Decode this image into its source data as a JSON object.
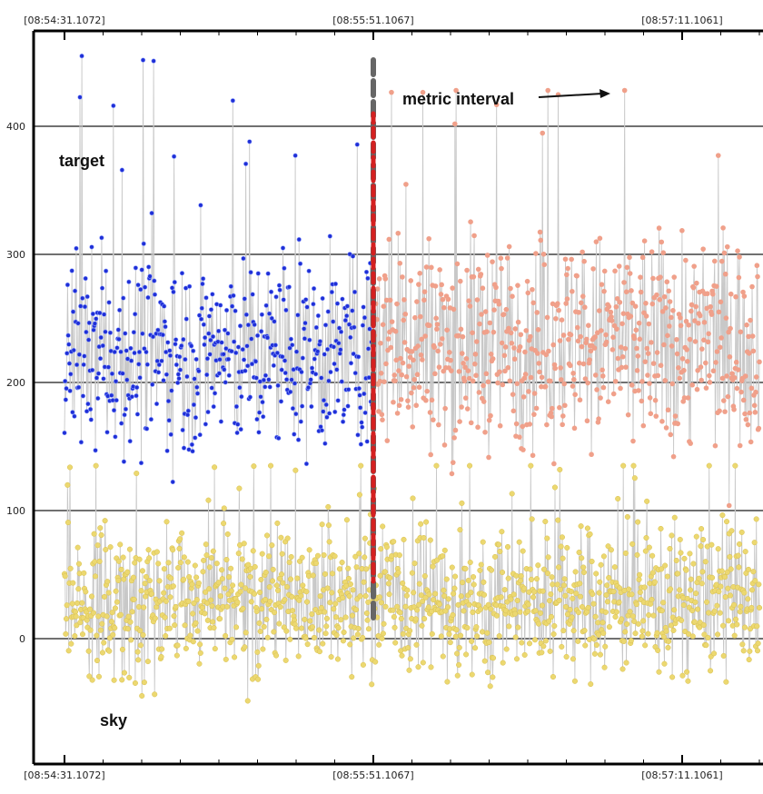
{
  "chart_data": {
    "type": "scatter",
    "title": "",
    "xlabel": "",
    "ylabel": "",
    "x_ticks": [
      "[08:54:31.1072]",
      "[08:55:51.1067]",
      "[08:57:11.1061]"
    ],
    "x_tick_seconds": [
      0,
      80,
      160
    ],
    "xlim_seconds": [
      -7.6,
      180
    ],
    "ylim": [
      -95,
      475
    ],
    "y_ticks": [
      0,
      100,
      200,
      300,
      400
    ],
    "grid": "horizontal",
    "series": [
      {
        "name": "target",
        "color": "#1f2fd6",
        "marker": "star",
        "x_range_seconds": [
          0,
          80
        ],
        "points": 500,
        "center": 222,
        "spread": 60,
        "max": 455
      },
      {
        "name": "",
        "color": "#f0a08a",
        "marker": "circle",
        "x_range_seconds": [
          80,
          180
        ],
        "points": 640,
        "center": 232,
        "spread": 65,
        "max": 428
      },
      {
        "name": "sky",
        "color": "#ecd870",
        "marker": "circle",
        "x_range_seconds": [
          0,
          180
        ],
        "points": 1150,
        "center": 30,
        "spread": 45,
        "max": 135
      }
    ],
    "annotations": [
      {
        "text": "target"
      },
      {
        "text": "sky"
      },
      {
        "text": "metric interval"
      }
    ],
    "marker_line_x_seconds": 80,
    "colors": {
      "connector": "#c8c8c8",
      "grid": "#707070",
      "marker_line_outer": "#666666",
      "marker_line_inner": "#d42020",
      "arrow": "#111111"
    }
  }
}
